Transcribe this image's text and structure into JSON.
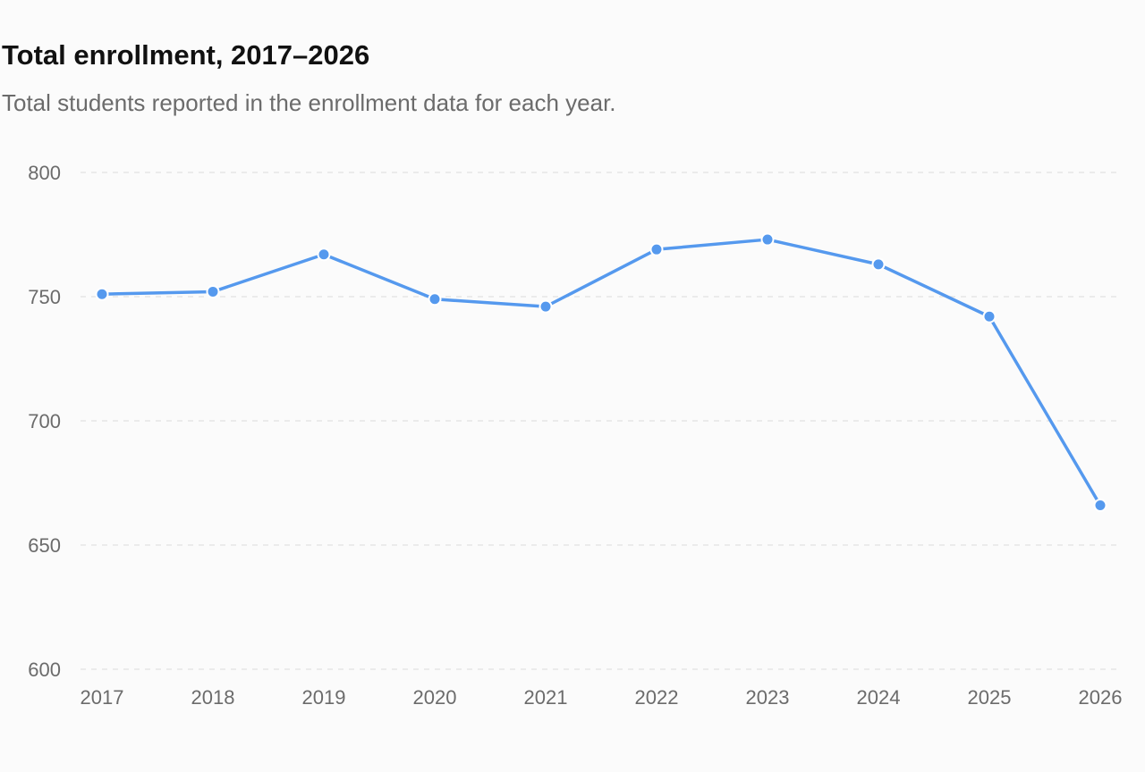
{
  "chart_data": {
    "type": "line",
    "title": "Total enrollment, 2017–2026",
    "subtitle": "Total students reported in the enrollment data for each year.",
    "xlabel": "",
    "ylabel": "",
    "x": [
      "2017",
      "2018",
      "2019",
      "2020",
      "2021",
      "2022",
      "2023",
      "2024",
      "2025",
      "2026"
    ],
    "series": [
      {
        "values": [
          751,
          752,
          767,
          749,
          746,
          769,
          773,
          763,
          742,
          666
        ]
      }
    ],
    "ylim": [
      600,
      800
    ],
    "yticks": [
      600,
      650,
      700,
      750,
      800
    ],
    "grid": true,
    "line_color": "#5599ee",
    "grid_color": "#e6e6e6",
    "tick_color": "#6b6b6b"
  }
}
